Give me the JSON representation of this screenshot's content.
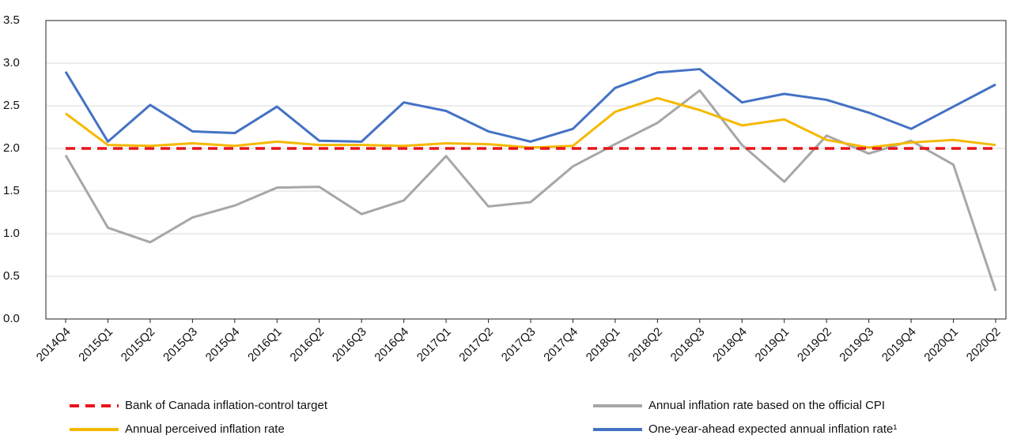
{
  "chart_data": {
    "type": "line",
    "categories": [
      "2014Q4",
      "2015Q1",
      "2015Q2",
      "2015Q3",
      "2015Q4",
      "2016Q1",
      "2016Q2",
      "2016Q3",
      "2016Q4",
      "2017Q1",
      "2017Q2",
      "2017Q3",
      "2017Q4",
      "2018Q1",
      "2018Q2",
      "2018Q3",
      "2018Q4",
      "2019Q1",
      "2019Q2",
      "2019Q3",
      "2019Q4",
      "2020Q1",
      "2020Q2"
    ],
    "series": [
      {
        "name": "Bank of Canada inflation-control target",
        "color": "#e8141c",
        "dash": true,
        "values": [
          2.0,
          2.0,
          2.0,
          2.0,
          2.0,
          2.0,
          2.0,
          2.0,
          2.0,
          2.0,
          2.0,
          2.0,
          2.0,
          2.0,
          2.0,
          2.0,
          2.0,
          2.0,
          2.0,
          2.0,
          2.0,
          2.0,
          2.0
        ]
      },
      {
        "name": "Annual inflation rate based on the official CPI",
        "color": "#a7a7a7",
        "values": [
          1.92,
          1.07,
          0.9,
          1.19,
          1.33,
          1.54,
          1.55,
          1.23,
          1.39,
          1.91,
          1.32,
          1.37,
          1.79,
          2.05,
          2.3,
          2.68,
          2.04,
          1.61,
          2.15,
          1.94,
          2.09,
          1.81,
          0.33
        ]
      },
      {
        "name": "Annual perceived inflation rate",
        "color": "#f5b800",
        "values": [
          2.41,
          2.04,
          2.03,
          2.06,
          2.03,
          2.08,
          2.04,
          2.04,
          2.03,
          2.06,
          2.05,
          2.01,
          2.03,
          2.43,
          2.59,
          2.45,
          2.27,
          2.34,
          2.1,
          2.01,
          2.07,
          2.1,
          2.04
        ]
      },
      {
        "name": "One-year-ahead expected annual inflation rate¹",
        "color": "#4472c4",
        "values": [
          2.9,
          2.08,
          2.51,
          2.2,
          2.18,
          2.49,
          2.09,
          2.08,
          2.54,
          2.44,
          2.2,
          2.08,
          2.23,
          2.71,
          2.89,
          2.93,
          2.54,
          2.64,
          2.57,
          2.42,
          2.23,
          2.49,
          2.75
        ]
      }
    ],
    "ylim": [
      0,
      3.5
    ],
    "yticks": [
      {
        "value": 0,
        "label": "0.0"
      },
      0.5,
      {
        "value": 1,
        "label": "1.0"
      },
      1.5,
      {
        "value": 2,
        "label": "2.0"
      },
      2.5,
      {
        "value": 3,
        "label": "3.0"
      },
      3.5
    ],
    "grid": true
  }
}
